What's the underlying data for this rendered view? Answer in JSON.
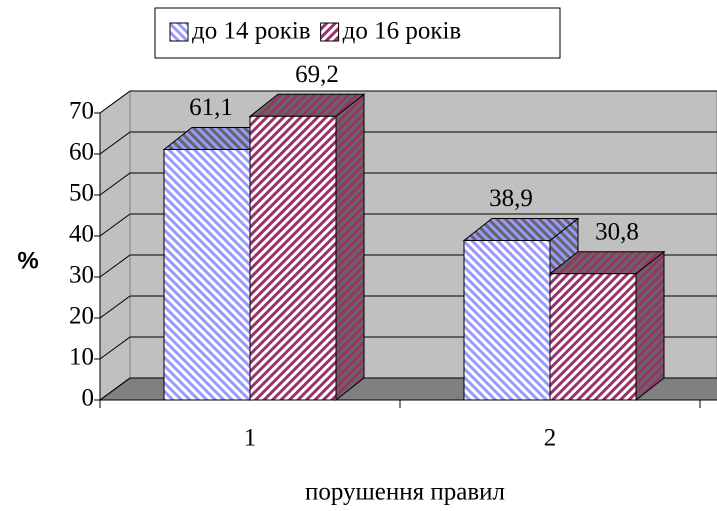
{
  "chart_data": {
    "type": "bar3d",
    "categories": [
      "1",
      "2"
    ],
    "series": [
      {
        "name": "до 14 років",
        "color": "#9999ff",
        "values": [
          61.1,
          38.9
        ],
        "value_labels": [
          "61,1",
          "38,9"
        ]
      },
      {
        "name": "до 16 років",
        "color": "#993366",
        "values": [
          69.2,
          30.8
        ],
        "value_labels": [
          "69,2",
          "30,8"
        ]
      }
    ],
    "ylim": [
      0,
      70
    ],
    "yticks": [
      0,
      10,
      20,
      30,
      40,
      50,
      60,
      70
    ],
    "ylabel": "%",
    "xlabel": "порушення правил",
    "grid": true,
    "legend": "top"
  }
}
